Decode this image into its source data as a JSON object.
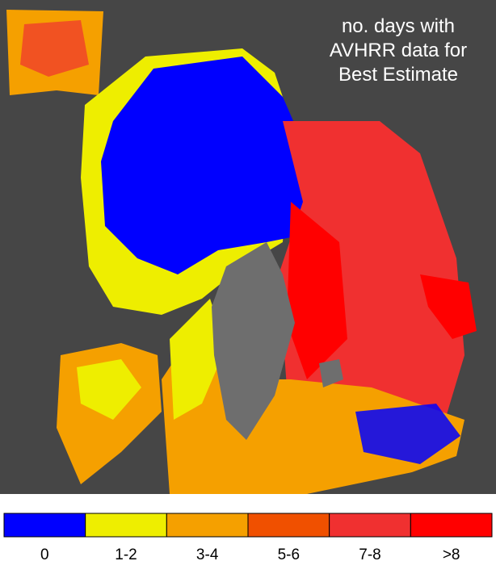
{
  "title": {
    "lines": [
      "no. days with",
      "AVHRR data for",
      "Best Estimate"
    ]
  },
  "legend": {
    "items": [
      {
        "label": "0",
        "color": "#0000ff"
      },
      {
        "label": "1-2",
        "color": "#eeee00"
      },
      {
        "label": "3-4",
        "color": "#f5a000"
      },
      {
        "label": "5-6",
        "color": "#f05000"
      },
      {
        "label": "7-8",
        "color": "#f03030"
      },
      {
        "label": ">8",
        "color": "#ff0000"
      }
    ]
  }
}
